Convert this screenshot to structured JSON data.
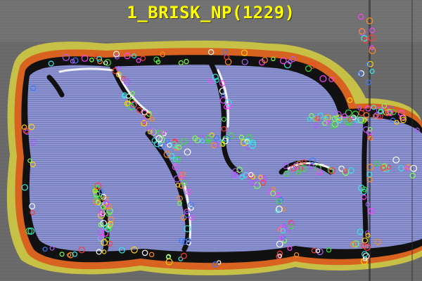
{
  "overlay": {
    "title": "1_BRISK_NP(1229)",
    "title_color": "#ffff00"
  },
  "scene": {
    "wall_color": "#6b6b6b",
    "fill_color": "#8d94d6",
    "outline_color": "#111111",
    "orange_color": "#d8621f",
    "yellow_color": "#d6cf40",
    "white_highlight_color": "#f2f2f2"
  },
  "keypoints": {
    "count": 1229,
    "palette": [
      "#ff3b3b",
      "#38e038",
      "#3d7bff",
      "#ffd400",
      "#ff40ff",
      "#33e8e8",
      "#ff8a1e",
      "#b05cff",
      "#ffffff",
      "#7cff4d"
    ]
  }
}
